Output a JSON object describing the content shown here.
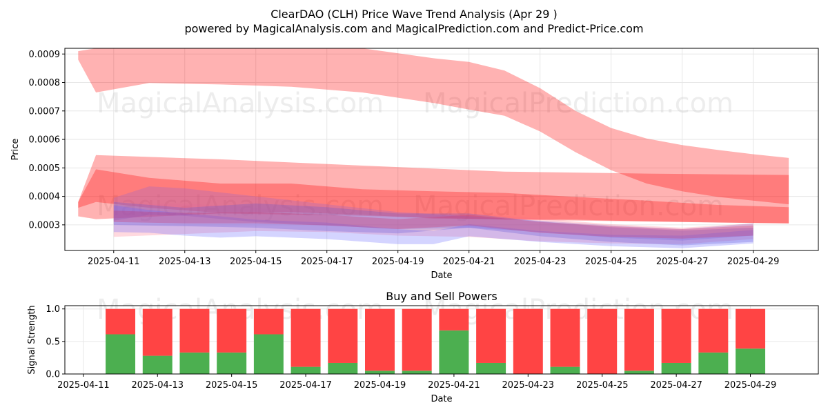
{
  "header": {
    "title": "ClearDAO (CLH) Price Wave Trend Analysis (Apr 29 )",
    "subtitle": "powered by MagicalAnalysis.com and MagicalPrediction.com and Predict-Price.com"
  },
  "watermarks": [
    "MagicalAnalysis.com",
    "MagicalPrediction.com"
  ],
  "chart_data": [
    {
      "type": "area",
      "title": "",
      "xlabel": "Date",
      "ylabel": "Price",
      "x_start": "2025-04-10",
      "xlim": [
        "2025-04-09T15:00",
        "2025-04-30T20:00"
      ],
      "ylim": [
        0.00021,
        0.00092
      ],
      "y_ticks": [
        0.0003,
        0.0004,
        0.0005,
        0.0006,
        0.0007,
        0.0008,
        0.0009
      ],
      "y_tick_labels": [
        "0.0003",
        "0.0004",
        "0.0005",
        "0.0006",
        "0.0007",
        "0.0008",
        "0.0009"
      ],
      "x_ticks": [
        "2025-04-11",
        "2025-04-13",
        "2025-04-15",
        "2025-04-17",
        "2025-04-19",
        "2025-04-21",
        "2025-04-23",
        "2025-04-25",
        "2025-04-27",
        "2025-04-29"
      ],
      "grid": true,
      "bands": [
        {
          "color": "#ff0000",
          "opacity": 0.3,
          "x": [
            "2025-04-10",
            "2025-04-10T12:00",
            "2025-04-12",
            "2025-04-14",
            "2025-04-16",
            "2025-04-18",
            "2025-04-20",
            "2025-04-21",
            "2025-04-22",
            "2025-04-23",
            "2025-04-24",
            "2025-04-25",
            "2025-04-26",
            "2025-04-27",
            "2025-04-28",
            "2025-04-29",
            "2025-04-30"
          ],
          "upper": [
            0.00091,
            0.00092,
            0.00092,
            0.00092,
            0.00092,
            0.00092,
            0.000885,
            0.000872,
            0.000842,
            0.00078,
            0.0007,
            0.00064,
            0.000603,
            0.00058,
            0.000563,
            0.000548,
            0.000535
          ],
          "lower": [
            0.00088,
            0.000765,
            0.000798,
            0.000793,
            0.000785,
            0.000765,
            0.000728,
            0.000705,
            0.000683,
            0.000628,
            0.000555,
            0.000492,
            0.000445,
            0.000418,
            0.000398,
            0.000385,
            0.000372
          ]
        },
        {
          "color": "#ff0000",
          "opacity": 0.3,
          "x": [
            "2025-04-10",
            "2025-04-10T12:00",
            "2025-04-14",
            "2025-04-18",
            "2025-04-22",
            "2025-04-26",
            "2025-04-30"
          ],
          "upper": [
            0.00038,
            0.000545,
            0.00053,
            0.000508,
            0.000487,
            0.00048,
            0.000475
          ],
          "lower": [
            0.00033,
            0.00032,
            0.00034,
            0.000332,
            0.000318,
            0.000312,
            0.000305
          ]
        },
        {
          "color": "#ff0000",
          "opacity": 0.3,
          "x": [
            "2025-04-10",
            "2025-04-10T12:00",
            "2025-04-12",
            "2025-04-14",
            "2025-04-16",
            "2025-04-18",
            "2025-04-20",
            "2025-04-22",
            "2025-04-24",
            "2025-04-26",
            "2025-04-28",
            "2025-04-30"
          ],
          "upper": [
            0.00038,
            0.000495,
            0.000465,
            0.000445,
            0.000445,
            0.000425,
            0.000418,
            0.000412,
            0.000398,
            0.000385,
            0.00037,
            0.000362
          ],
          "lower": [
            0.00036,
            0.00038,
            0.00036,
            0.000342,
            0.000345,
            0.000335,
            0.000322,
            0.00032,
            0.000318,
            0.000312,
            0.000308,
            0.000305
          ]
        },
        {
          "color": "#ff6680",
          "opacity": 0.25,
          "x": [
            "2025-04-11",
            "2025-04-13",
            "2025-04-15",
            "2025-04-17",
            "2025-04-19",
            "2025-04-21",
            "2025-04-23",
            "2025-04-25",
            "2025-04-27",
            "2025-04-29"
          ],
          "upper": [
            0.00037,
            0.000375,
            0.00036,
            0.00034,
            0.00033,
            0.00034,
            0.000322,
            0.000302,
            0.00029,
            0.000305
          ],
          "lower": [
            0.000258,
            0.000268,
            0.000278,
            0.000275,
            0.000262,
            0.000258,
            0.000242,
            0.000235,
            0.000232,
            0.00025
          ]
        },
        {
          "color": "#9966cc",
          "opacity": 0.3,
          "x": [
            "2025-04-11",
            "2025-04-12",
            "2025-04-13",
            "2025-04-15",
            "2025-04-17",
            "2025-04-19",
            "2025-04-21",
            "2025-04-23",
            "2025-04-25",
            "2025-04-27",
            "2025-04-29"
          ],
          "upper": [
            0.000395,
            0.000435,
            0.000428,
            0.0004,
            0.000372,
            0.000345,
            0.00033,
            0.000315,
            0.000298,
            0.000285,
            0.000305
          ],
          "lower": [
            0.000315,
            0.000335,
            0.000332,
            0.00031,
            0.000298,
            0.000285,
            0.00029,
            0.000275,
            0.000255,
            0.000245,
            0.000262
          ]
        },
        {
          "color": "#6a5acd",
          "opacity": 0.3,
          "x": [
            "2025-04-11",
            "2025-04-13",
            "2025-04-15",
            "2025-04-17",
            "2025-04-19",
            "2025-04-21",
            "2025-04-23",
            "2025-04-25",
            "2025-04-27",
            "2025-04-29"
          ],
          "upper": [
            0.00038,
            0.00036,
            0.000375,
            0.000362,
            0.00034,
            0.00034,
            0.000312,
            0.000292,
            0.00028,
            0.00029
          ],
          "lower": [
            0.0003,
            0.000295,
            0.00029,
            0.000278,
            0.00027,
            0.00029,
            0.00026,
            0.00024,
            0.000228,
            0.00024
          ]
        },
        {
          "color": "#6666ff",
          "opacity": 0.28,
          "x": [
            "2025-04-11",
            "2025-04-12",
            "2025-04-13",
            "2025-04-14",
            "2025-04-15",
            "2025-04-17",
            "2025-04-19",
            "2025-04-20",
            "2025-04-21",
            "2025-04-23",
            "2025-04-25",
            "2025-04-27",
            "2025-04-29"
          ],
          "upper": [
            0.000368,
            0.000352,
            0.00034,
            0.00033,
            0.000318,
            0.000308,
            0.000285,
            0.000278,
            0.000302,
            0.000278,
            0.000265,
            0.000262,
            0.000282
          ],
          "lower": [
            0.000275,
            0.000272,
            0.000262,
            0.000255,
            0.00026,
            0.00025,
            0.000232,
            0.000232,
            0.00026,
            0.00024,
            0.000225,
            0.000218,
            0.000235
          ]
        },
        {
          "color": "#cc3366",
          "opacity": 0.3,
          "x": [
            "2025-04-11",
            "2025-04-13",
            "2025-04-15",
            "2025-04-17",
            "2025-04-19",
            "2025-04-21",
            "2025-04-23",
            "2025-04-25",
            "2025-04-27",
            "2025-04-29"
          ],
          "upper": [
            0.00035,
            0.000342,
            0.000345,
            0.000335,
            0.00032,
            0.000335,
            0.00031,
            0.000295,
            0.000285,
            0.000298
          ],
          "lower": [
            0.00031,
            0.000305,
            0.000305,
            0.000298,
            0.000285,
            0.000298,
            0.000272,
            0.000258,
            0.000252,
            0.000262
          ]
        }
      ]
    },
    {
      "type": "bar",
      "title": "Buy and Sell Powers",
      "xlabel": "Date",
      "ylabel": "Signal Strength",
      "ylim": [
        0,
        1.05
      ],
      "y_ticks": [
        0.0,
        0.5,
        1.0
      ],
      "y_tick_labels": [
        "0.0",
        "0.5",
        "1.0"
      ],
      "x_ticks": [
        "2025-04-11",
        "2025-04-13",
        "2025-04-15",
        "2025-04-17",
        "2025-04-19",
        "2025-04-21",
        "2025-04-23",
        "2025-04-25",
        "2025-04-27",
        "2025-04-29"
      ],
      "xlim": [
        "2025-04-10T12:00",
        "2025-04-30T20:00"
      ],
      "grid": true,
      "categories": [
        "2025-04-12",
        "2025-04-13",
        "2025-04-14",
        "2025-04-15",
        "2025-04-16",
        "2025-04-17",
        "2025-04-18",
        "2025-04-19",
        "2025-04-20",
        "2025-04-21",
        "2025-04-22",
        "2025-04-23",
        "2025-04-24",
        "2025-04-25",
        "2025-04-26",
        "2025-04-27",
        "2025-04-28",
        "2025-04-29"
      ],
      "series": [
        {
          "color": "#4caf50",
          "values": [
            0.61,
            0.28,
            0.33,
            0.33,
            0.61,
            0.11,
            0.17,
            0.05,
            0.05,
            0.67,
            0.17,
            0.0,
            0.11,
            0.0,
            0.05,
            0.17,
            0.33,
            0.39
          ]
        },
        {
          "color": "#ff4444",
          "values": [
            0.39,
            0.72,
            0.67,
            0.67,
            0.39,
            0.89,
            0.83,
            0.95,
            0.95,
            0.33,
            0.83,
            1.0,
            0.89,
            1.0,
            0.95,
            0.83,
            0.67,
            0.61
          ]
        }
      ]
    }
  ]
}
